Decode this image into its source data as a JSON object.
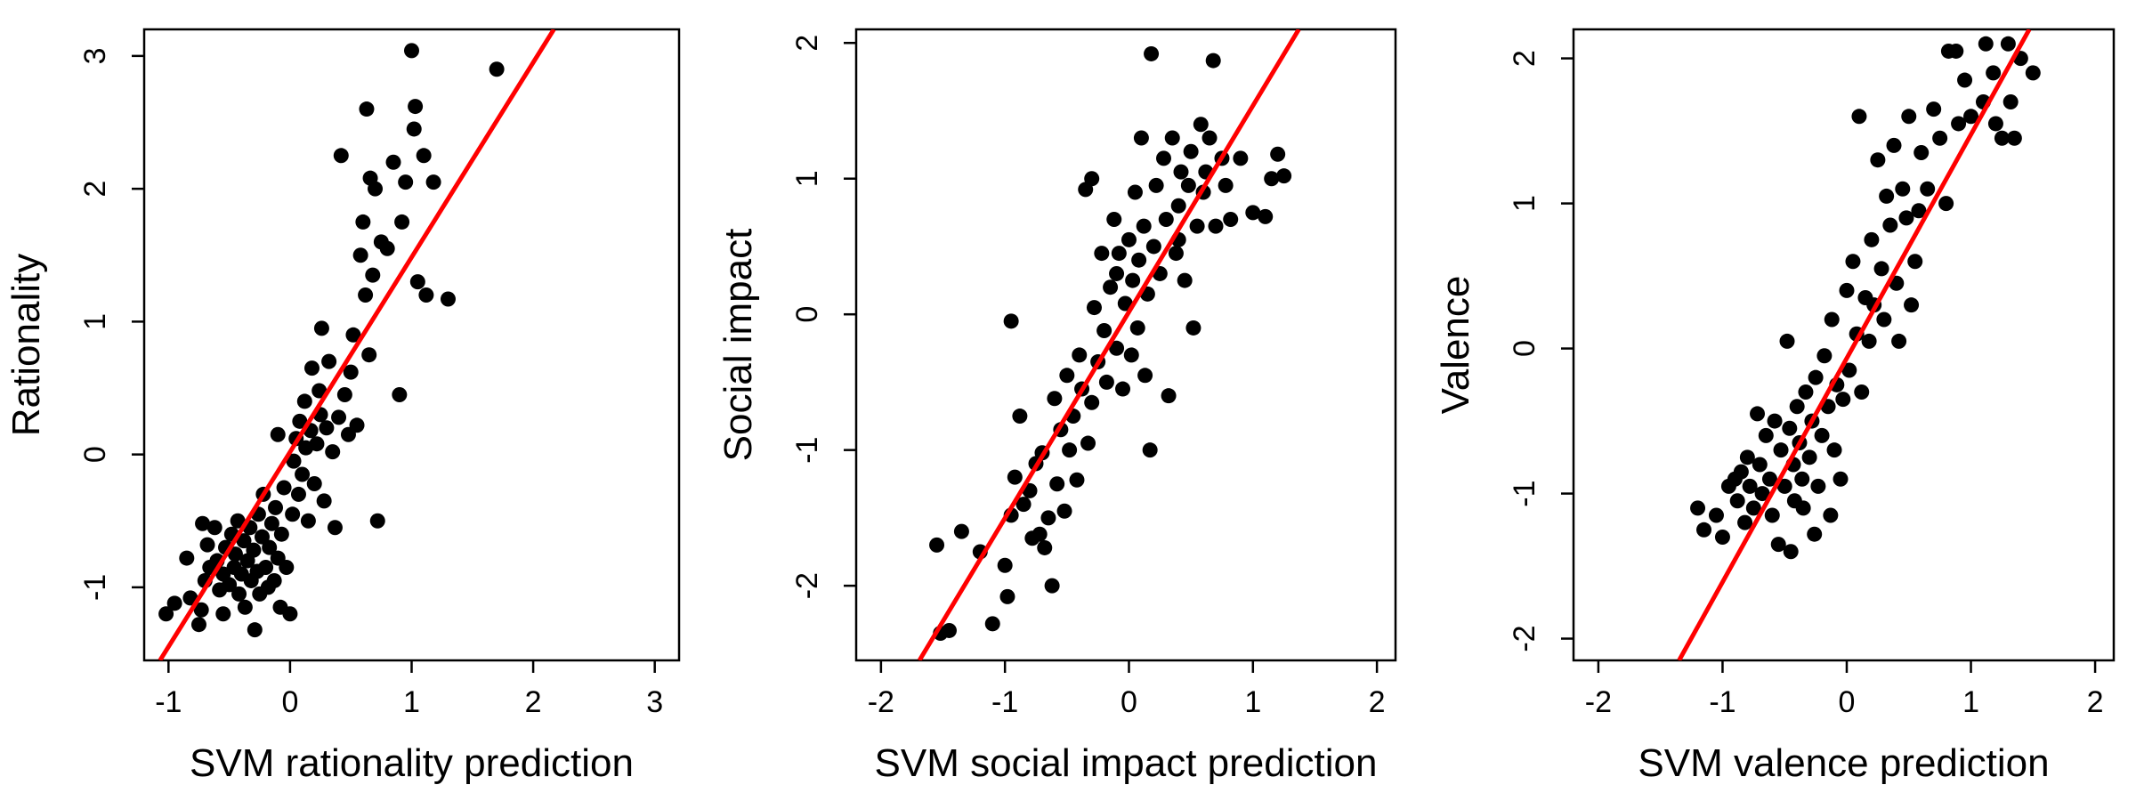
{
  "chart_data": [
    {
      "type": "scatter",
      "title": "",
      "xlabel": "SVM rationality prediction",
      "ylabel": "Rationality",
      "xlim": [
        -1.2,
        3.2
      ],
      "ylim": [
        -1.55,
        3.2
      ],
      "xticks": [
        -1,
        0,
        1,
        2,
        3
      ],
      "yticks": [
        -1,
        0,
        1,
        2,
        3
      ],
      "grid": false,
      "point_color": "#000000",
      "line_color": "#ff0000",
      "fit_line": [
        [
          -1.07,
          -1.55
        ],
        [
          2.17,
          3.2
        ]
      ],
      "points": [
        [
          -1.02,
          -1.2
        ],
        [
          -0.95,
          -1.12
        ],
        [
          -0.85,
          -0.78
        ],
        [
          -0.82,
          -1.08
        ],
        [
          -0.75,
          -1.28
        ],
        [
          -0.73,
          -1.17
        ],
        [
          -0.72,
          -0.52
        ],
        [
          -0.7,
          -0.95
        ],
        [
          -0.68,
          -0.68
        ],
        [
          -0.66,
          -0.85
        ],
        [
          -0.62,
          -0.55
        ],
        [
          -0.6,
          -0.8
        ],
        [
          -0.58,
          -1.02
        ],
        [
          -0.55,
          -0.9
        ],
        [
          -0.53,
          -0.7
        ],
        [
          -0.5,
          -0.98
        ],
        [
          -0.48,
          -0.6
        ],
        [
          -0.46,
          -0.85
        ],
        [
          -0.45,
          -0.75
        ],
        [
          -0.43,
          -0.5
        ],
        [
          -0.42,
          -1.05
        ],
        [
          -0.4,
          -0.9
        ],
        [
          -0.38,
          -0.65
        ],
        [
          -0.37,
          -1.15
        ],
        [
          -0.35,
          -0.8
        ],
        [
          -0.33,
          -0.55
        ],
        [
          -0.32,
          -0.95
        ],
        [
          -0.3,
          -0.72
        ],
        [
          -0.29,
          -1.32
        ],
        [
          -0.27,
          -0.88
        ],
        [
          -0.26,
          -0.45
        ],
        [
          -0.25,
          -1.05
        ],
        [
          -0.23,
          -0.62
        ],
        [
          -0.22,
          -0.3
        ],
        [
          -0.2,
          -0.85
        ],
        [
          -0.18,
          -1.0
        ],
        [
          -0.17,
          -0.7
        ],
        [
          -0.15,
          -0.52
        ],
        [
          -0.13,
          -0.95
        ],
        [
          -0.12,
          -0.4
        ],
        [
          -0.1,
          -0.78
        ],
        [
          -0.08,
          -1.15
        ],
        [
          -0.07,
          -0.6
        ],
        [
          -0.05,
          -0.25
        ],
        [
          -0.03,
          -0.85
        ],
        [
          0.0,
          -1.2
        ],
        [
          0.02,
          -0.45
        ],
        [
          0.03,
          -0.05
        ],
        [
          0.05,
          0.12
        ],
        [
          0.07,
          -0.3
        ],
        [
          0.08,
          0.25
        ],
        [
          0.1,
          -0.15
        ],
        [
          0.12,
          0.4
        ],
        [
          0.13,
          0.05
        ],
        [
          0.15,
          -0.5
        ],
        [
          0.17,
          0.18
        ],
        [
          0.18,
          0.65
        ],
        [
          0.2,
          -0.22
        ],
        [
          0.22,
          0.08
        ],
        [
          0.24,
          0.48
        ],
        [
          0.26,
          0.95
        ],
        [
          0.28,
          -0.35
        ],
        [
          0.3,
          0.2
        ],
        [
          0.32,
          0.7
        ],
        [
          0.35,
          0.02
        ],
        [
          0.37,
          -0.55
        ],
        [
          0.4,
          0.28
        ],
        [
          0.42,
          2.25
        ],
        [
          0.45,
          0.45
        ],
        [
          0.48,
          0.15
        ],
        [
          0.5,
          0.62
        ],
        [
          0.52,
          0.9
        ],
        [
          0.55,
          0.22
        ],
        [
          0.58,
          1.5
        ],
        [
          0.6,
          1.75
        ],
        [
          0.62,
          1.2
        ],
        [
          0.63,
          2.6
        ],
        [
          0.65,
          0.75
        ],
        [
          0.66,
          2.08
        ],
        [
          0.68,
          1.35
        ],
        [
          0.7,
          2.0
        ],
        [
          0.72,
          -0.5
        ],
        [
          0.75,
          1.6
        ],
        [
          0.8,
          1.55
        ],
        [
          0.85,
          2.2
        ],
        [
          0.9,
          0.45
        ],
        [
          0.92,
          1.75
        ],
        [
          0.95,
          2.05
        ],
        [
          1.0,
          3.04
        ],
        [
          1.02,
          2.45
        ],
        [
          1.03,
          2.62
        ],
        [
          1.05,
          1.3
        ],
        [
          1.1,
          2.25
        ],
        [
          1.12,
          1.2
        ],
        [
          1.18,
          2.05
        ],
        [
          1.3,
          1.17
        ],
        [
          1.7,
          2.9
        ],
        [
          -0.55,
          -1.2
        ],
        [
          0.25,
          0.3
        ],
        [
          -0.1,
          0.15
        ]
      ]
    },
    {
      "type": "scatter",
      "title": "",
      "xlabel": "SVM social impact prediction",
      "ylabel": "Social impact",
      "xlim": [
        -2.2,
        2.15
      ],
      "ylim": [
        -2.55,
        2.1
      ],
      "xticks": [
        -2,
        -1,
        0,
        1,
        2
      ],
      "yticks": [
        -2,
        -1,
        0,
        1,
        2
      ],
      "grid": false,
      "point_color": "#000000",
      "line_color": "#ff0000",
      "fit_line": [
        [
          -1.69,
          -2.55
        ],
        [
          1.37,
          2.1
        ]
      ],
      "points": [
        [
          -1.52,
          -2.35
        ],
        [
          -1.45,
          -2.33
        ],
        [
          -1.55,
          -1.7
        ],
        [
          -1.35,
          -1.6
        ],
        [
          -1.2,
          -1.75
        ],
        [
          -1.1,
          -2.28
        ],
        [
          -1.0,
          -1.85
        ],
        [
          -0.98,
          -2.08
        ],
        [
          -0.95,
          -1.48
        ],
        [
          -0.92,
          -1.2
        ],
        [
          -0.88,
          -0.75
        ],
        [
          -0.85,
          -1.4
        ],
        [
          -0.8,
          -1.3
        ],
        [
          -0.78,
          -1.65
        ],
        [
          -0.75,
          -1.1
        ],
        [
          -0.72,
          -1.62
        ],
        [
          -0.7,
          -1.02
        ],
        [
          -0.68,
          -1.72
        ],
        [
          -0.65,
          -1.5
        ],
        [
          -0.62,
          -2.0
        ],
        [
          -0.6,
          -0.62
        ],
        [
          -0.58,
          -1.25
        ],
        [
          -0.55,
          -0.85
        ],
        [
          -0.52,
          -1.45
        ],
        [
          -0.5,
          -0.45
        ],
        [
          -0.48,
          -1.0
        ],
        [
          -0.45,
          -0.75
        ],
        [
          -0.42,
          -1.22
        ],
        [
          -0.4,
          -0.3
        ],
        [
          -0.38,
          -0.55
        ],
        [
          -0.35,
          0.92
        ],
        [
          -0.33,
          -0.95
        ],
        [
          -0.3,
          -0.65
        ],
        [
          -0.28,
          0.05
        ],
        [
          -0.25,
          -0.35
        ],
        [
          -0.22,
          0.45
        ],
        [
          -0.2,
          -0.12
        ],
        [
          -0.18,
          -0.5
        ],
        [
          -0.15,
          0.2
        ],
        [
          -0.12,
          0.7
        ],
        [
          -0.1,
          -0.25
        ],
        [
          -0.08,
          0.45
        ],
        [
          -0.05,
          -0.55
        ],
        [
          -0.03,
          0.08
        ],
        [
          0.0,
          0.55
        ],
        [
          0.02,
          -0.3
        ],
        [
          0.03,
          0.25
        ],
        [
          0.05,
          0.9
        ],
        [
          0.07,
          -0.1
        ],
        [
          0.08,
          0.4
        ],
        [
          0.1,
          1.3
        ],
        [
          0.12,
          0.65
        ],
        [
          0.13,
          -0.45
        ],
        [
          0.15,
          0.15
        ],
        [
          0.17,
          -1.0
        ],
        [
          0.18,
          1.92
        ],
        [
          0.2,
          0.5
        ],
        [
          0.22,
          0.95
        ],
        [
          0.25,
          0.3
        ],
        [
          0.28,
          1.15
        ],
        [
          0.3,
          0.7
        ],
        [
          0.32,
          -0.6
        ],
        [
          0.35,
          1.3
        ],
        [
          0.38,
          0.45
        ],
        [
          0.4,
          0.8
        ],
        [
          0.42,
          1.05
        ],
        [
          0.45,
          0.25
        ],
        [
          0.48,
          0.95
        ],
        [
          0.5,
          1.2
        ],
        [
          0.52,
          -0.1
        ],
        [
          0.55,
          0.65
        ],
        [
          0.58,
          1.4
        ],
        [
          0.6,
          0.9
        ],
        [
          0.62,
          1.05
        ],
        [
          0.65,
          1.3
        ],
        [
          0.68,
          1.87
        ],
        [
          0.7,
          0.65
        ],
        [
          0.75,
          1.15
        ],
        [
          0.78,
          0.95
        ],
        [
          0.82,
          0.7
        ],
        [
          0.9,
          1.15
        ],
        [
          1.0,
          0.75
        ],
        [
          1.1,
          0.72
        ],
        [
          1.15,
          1.0
        ],
        [
          1.2,
          1.18
        ],
        [
          1.25,
          1.02
        ],
        [
          -0.3,
          1.0
        ],
        [
          -0.95,
          -0.05
        ],
        [
          -0.1,
          0.3
        ],
        [
          0.4,
          0.55
        ]
      ]
    },
    {
      "type": "scatter",
      "title": "",
      "xlabel": "SVM valence prediction",
      "ylabel": "Valence",
      "xlim": [
        -2.2,
        2.15
      ],
      "ylim": [
        -2.15,
        2.2
      ],
      "xticks": [
        -2,
        -1,
        0,
        1,
        2
      ],
      "yticks": [
        -2,
        -1,
        0,
        1,
        2
      ],
      "grid": false,
      "point_color": "#000000",
      "line_color": "#ff0000",
      "fit_line": [
        [
          -1.35,
          -2.15
        ],
        [
          1.47,
          2.2
        ]
      ],
      "points": [
        [
          -1.2,
          -1.1
        ],
        [
          -1.15,
          -1.25
        ],
        [
          -1.05,
          -1.15
        ],
        [
          -1.0,
          -1.3
        ],
        [
          -0.95,
          -0.95
        ],
        [
          -0.9,
          -0.9
        ],
        [
          -0.88,
          -1.05
        ],
        [
          -0.85,
          -0.85
        ],
        [
          -0.82,
          -1.2
        ],
        [
          -0.8,
          -0.75
        ],
        [
          -0.78,
          -0.95
        ],
        [
          -0.75,
          -1.1
        ],
        [
          -0.72,
          -0.45
        ],
        [
          -0.7,
          -0.8
        ],
        [
          -0.68,
          -1.0
        ],
        [
          -0.65,
          -0.6
        ],
        [
          -0.62,
          -0.9
        ],
        [
          -0.6,
          -1.15
        ],
        [
          -0.58,
          -0.5
        ],
        [
          -0.55,
          -1.35
        ],
        [
          -0.53,
          -0.7
        ],
        [
          -0.5,
          -0.95
        ],
        [
          -0.48,
          0.05
        ],
        [
          -0.46,
          -0.55
        ],
        [
          -0.45,
          -1.4
        ],
        [
          -0.43,
          -0.8
        ],
        [
          -0.42,
          -1.05
        ],
        [
          -0.4,
          -0.4
        ],
        [
          -0.38,
          -0.65
        ],
        [
          -0.36,
          -0.9
        ],
        [
          -0.35,
          -1.1
        ],
        [
          -0.33,
          -0.3
        ],
        [
          -0.3,
          -0.75
        ],
        [
          -0.28,
          -0.5
        ],
        [
          -0.26,
          -1.28
        ],
        [
          -0.25,
          -0.2
        ],
        [
          -0.23,
          -0.95
        ],
        [
          -0.2,
          -0.6
        ],
        [
          -0.18,
          -0.05
        ],
        [
          -0.15,
          -0.4
        ],
        [
          -0.13,
          -1.15
        ],
        [
          -0.12,
          0.2
        ],
        [
          -0.1,
          -0.7
        ],
        [
          -0.08,
          -0.25
        ],
        [
          -0.05,
          -0.9
        ],
        [
          -0.03,
          -0.35
        ],
        [
          0.0,
          0.4
        ],
        [
          0.02,
          -0.15
        ],
        [
          0.05,
          0.6
        ],
        [
          0.08,
          0.1
        ],
        [
          0.1,
          1.6
        ],
        [
          0.12,
          -0.3
        ],
        [
          0.15,
          0.35
        ],
        [
          0.18,
          0.05
        ],
        [
          0.2,
          0.75
        ],
        [
          0.22,
          0.3
        ],
        [
          0.25,
          1.3
        ],
        [
          0.28,
          0.55
        ],
        [
          0.3,
          0.2
        ],
        [
          0.32,
          1.05
        ],
        [
          0.35,
          0.85
        ],
        [
          0.38,
          1.4
        ],
        [
          0.4,
          0.45
        ],
        [
          0.42,
          0.05
        ],
        [
          0.45,
          1.1
        ],
        [
          0.48,
          0.9
        ],
        [
          0.5,
          1.6
        ],
        [
          0.52,
          0.3
        ],
        [
          0.55,
          0.6
        ],
        [
          0.58,
          0.95
        ],
        [
          0.6,
          1.35
        ],
        [
          0.65,
          1.1
        ],
        [
          0.7,
          1.65
        ],
        [
          0.75,
          1.45
        ],
        [
          0.8,
          1.0
        ],
        [
          0.82,
          2.05
        ],
        [
          0.88,
          2.05
        ],
        [
          0.9,
          1.55
        ],
        [
          0.95,
          1.85
        ],
        [
          1.0,
          1.6
        ],
        [
          1.1,
          1.7
        ],
        [
          1.12,
          2.1
        ],
        [
          1.18,
          1.9
        ],
        [
          1.2,
          1.55
        ],
        [
          1.25,
          1.45
        ],
        [
          1.3,
          2.1
        ],
        [
          1.32,
          1.7
        ],
        [
          1.35,
          1.45
        ],
        [
          1.4,
          2.0
        ],
        [
          1.5,
          1.9
        ]
      ]
    }
  ]
}
